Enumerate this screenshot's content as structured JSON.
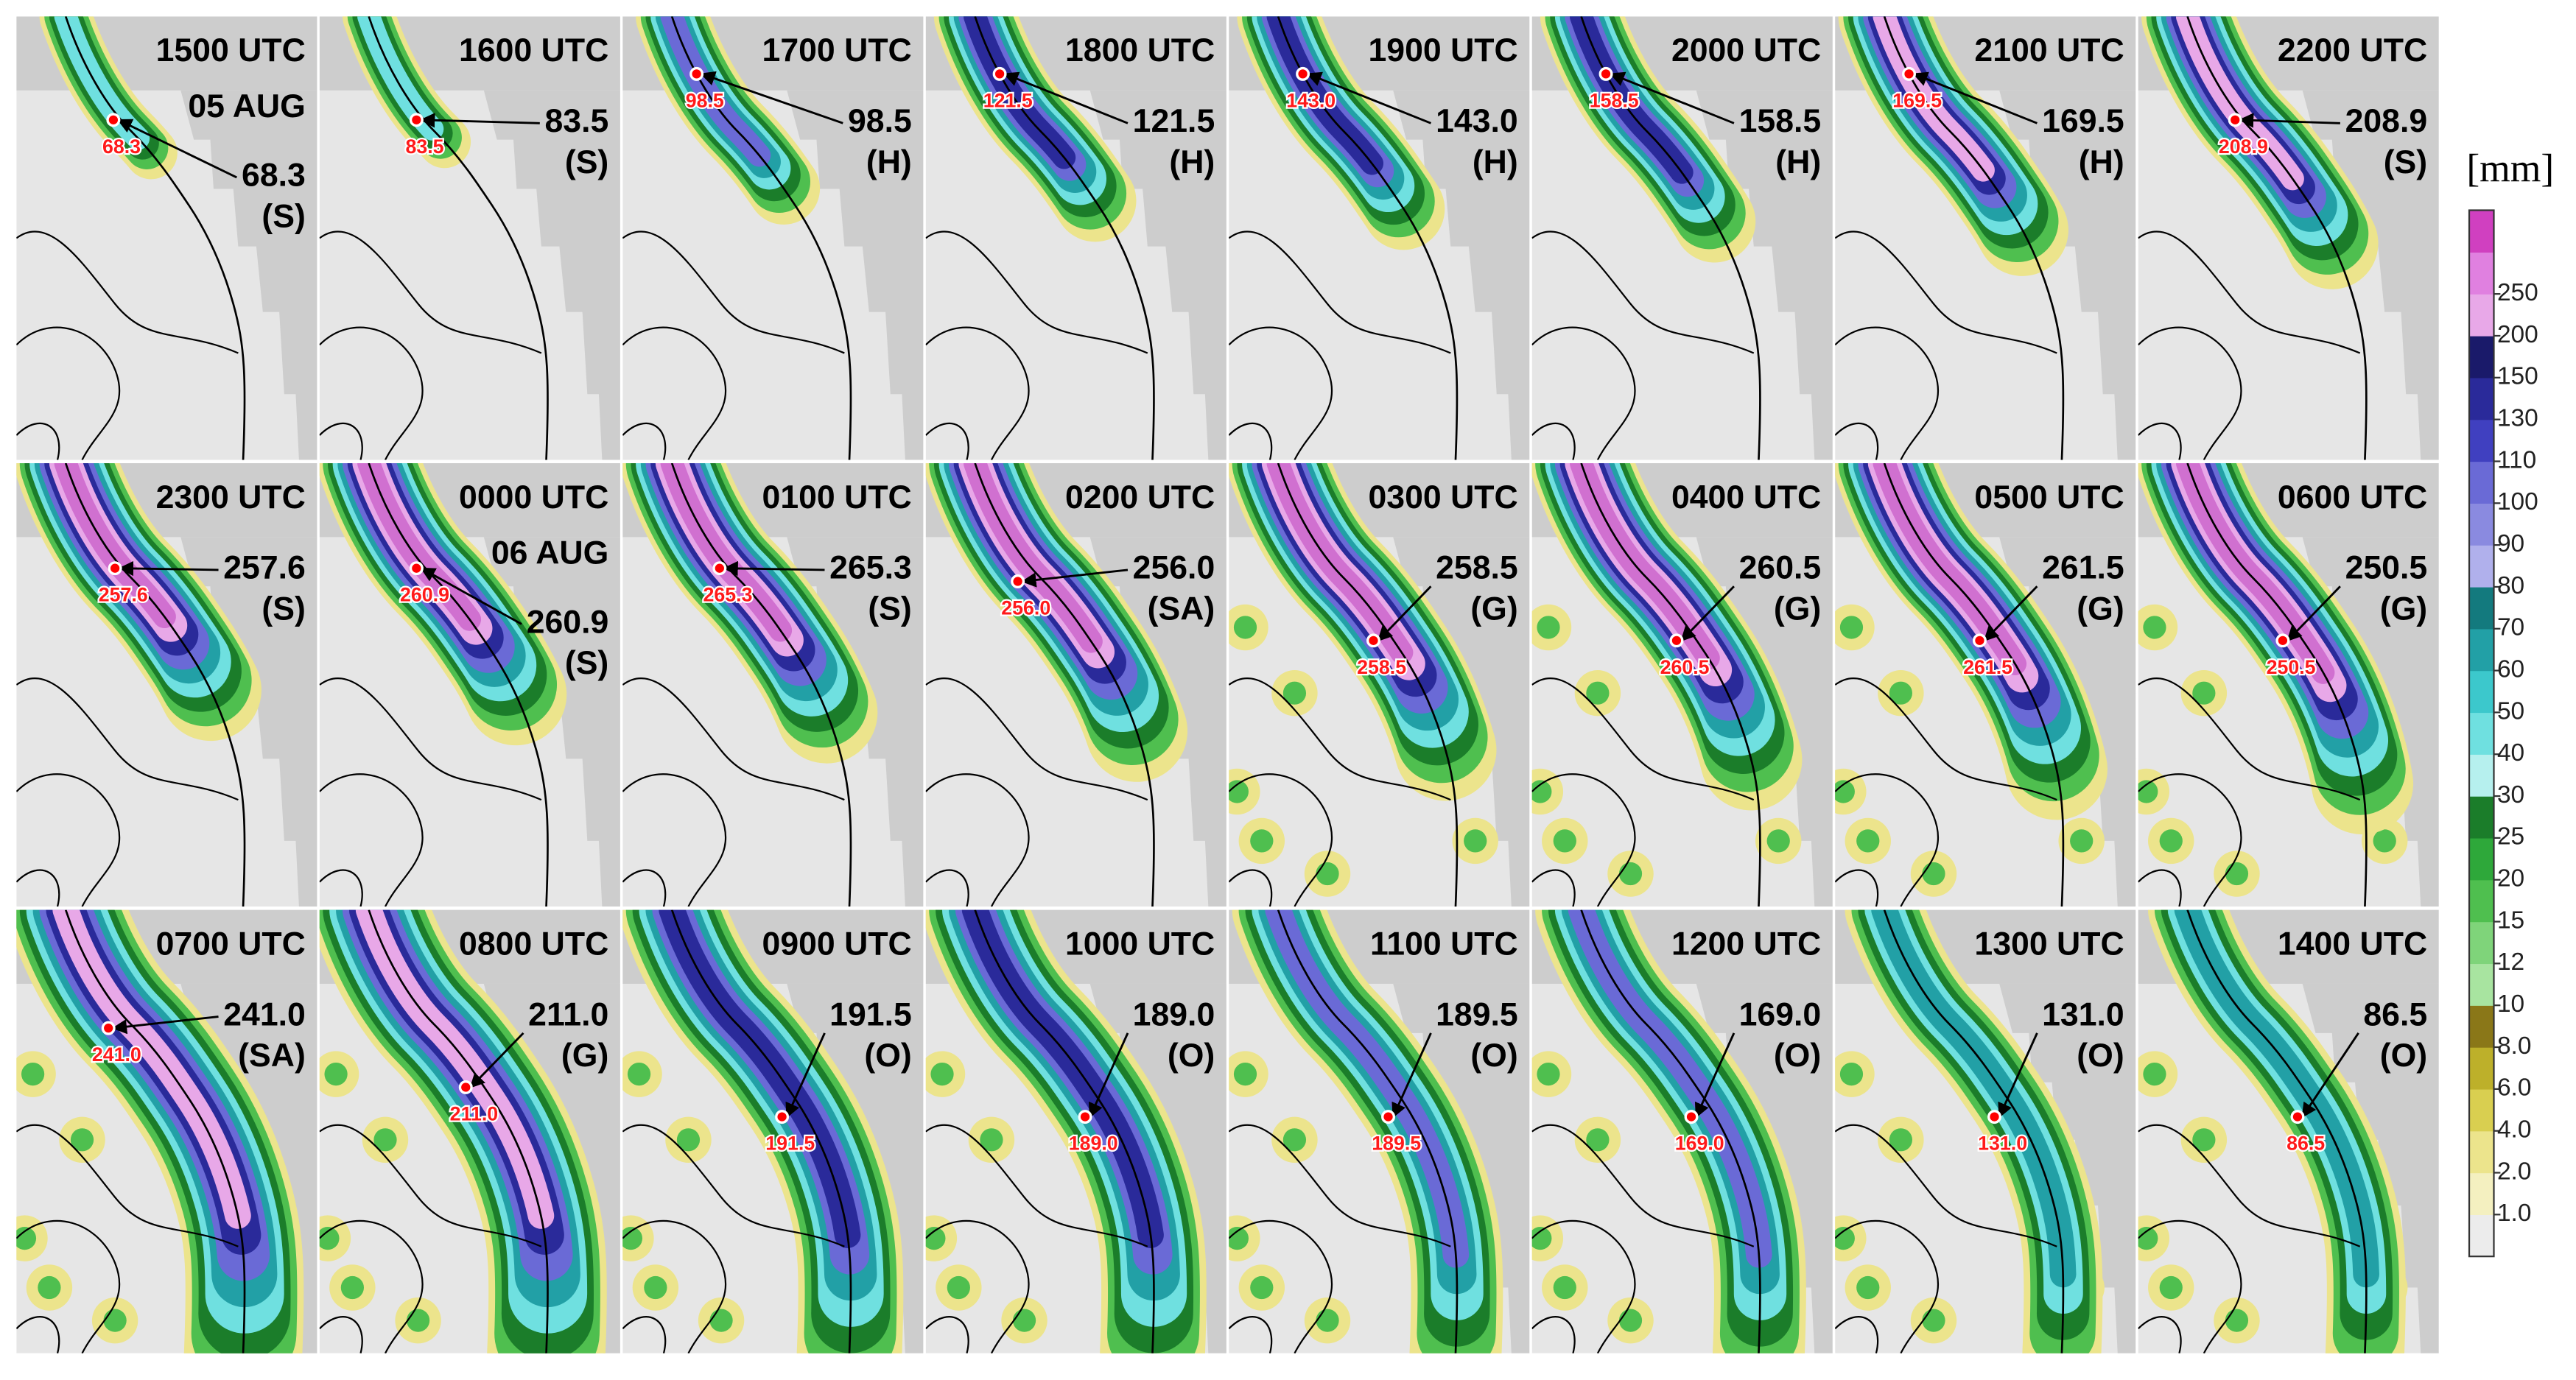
{
  "panels": [
    {
      "time": "1500 UTC",
      "date": "05 AUG",
      "value": "68.3",
      "kind": "(S)"
    },
    {
      "time": "1600 UTC",
      "value": "83.5",
      "kind": "(S)"
    },
    {
      "time": "1700 UTC",
      "value": "98.5",
      "kind": "(H)"
    },
    {
      "time": "1800 UTC",
      "value": "121.5",
      "kind": "(H)"
    },
    {
      "time": "1900 UTC",
      "value": "143.0",
      "kind": "(H)"
    },
    {
      "time": "2000 UTC",
      "value": "158.5",
      "kind": "(H)"
    },
    {
      "time": "2100 UTC",
      "value": "169.5",
      "kind": "(H)"
    },
    {
      "time": "2200 UTC",
      "value": "208.9",
      "kind": "(S)"
    },
    {
      "time": "2300 UTC",
      "value": "257.6",
      "kind": "(S)"
    },
    {
      "time": "0000 UTC",
      "date": "06 AUG",
      "value": "260.9",
      "kind": "(S)"
    },
    {
      "time": "0100 UTC",
      "value": "265.3",
      "kind": "(S)"
    },
    {
      "time": "0200 UTC",
      "value": "256.0",
      "kind": "(SA)"
    },
    {
      "time": "0300 UTC",
      "value": "258.5",
      "kind": "(G)"
    },
    {
      "time": "0400 UTC",
      "value": "260.5",
      "kind": "(G)"
    },
    {
      "time": "0500 UTC",
      "value": "261.5",
      "kind": "(G)"
    },
    {
      "time": "0600 UTC",
      "value": "250.5",
      "kind": "(G)"
    },
    {
      "time": "0700 UTC",
      "value": "241.0",
      "kind": "(SA)"
    },
    {
      "time": "0800 UTC",
      "value": "211.0",
      "kind": "(G)"
    },
    {
      "time": "0900 UTC",
      "value": "191.5",
      "kind": "(O)"
    },
    {
      "time": "1000 UTC",
      "value": "189.0",
      "kind": "(O)"
    },
    {
      "time": "1100 UTC",
      "value": "189.5",
      "kind": "(O)"
    },
    {
      "time": "1200 UTC",
      "value": "169.0",
      "kind": "(O)"
    },
    {
      "time": "1300 UTC",
      "value": "131.0",
      "kind": "(O)"
    },
    {
      "time": "1400 UTC",
      "value": "86.5",
      "kind": "(O)"
    }
  ],
  "colorbar": {
    "unit": "[mm]",
    "levels": [
      "1.0",
      "2.0",
      "4.0",
      "6.0",
      "8.0",
      "10",
      "12",
      "15",
      "20",
      "25",
      "30",
      "40",
      "50",
      "60",
      "70",
      "80",
      "90",
      "100",
      "110",
      "130",
      "150",
      "200",
      "250"
    ],
    "colors": [
      "#ececec",
      "#f4f0c0",
      "#ece48c",
      "#d9cf50",
      "#bdb02a",
      "#8a7718",
      "#a8e4a0",
      "#7fd47a",
      "#4fbf4f",
      "#2ea83a",
      "#1b7d2a",
      "#b6f0ee",
      "#6fe0e0",
      "#3cc8cc",
      "#22a0a6",
      "#137a7e",
      "#b0b0ec",
      "#8a8ae0",
      "#6a6ad6",
      "#4040c0",
      "#2a2a9a",
      "#1a1a6a",
      "#e8a8e8",
      "#e080e0",
      "#d040c0"
    ]
  }
}
